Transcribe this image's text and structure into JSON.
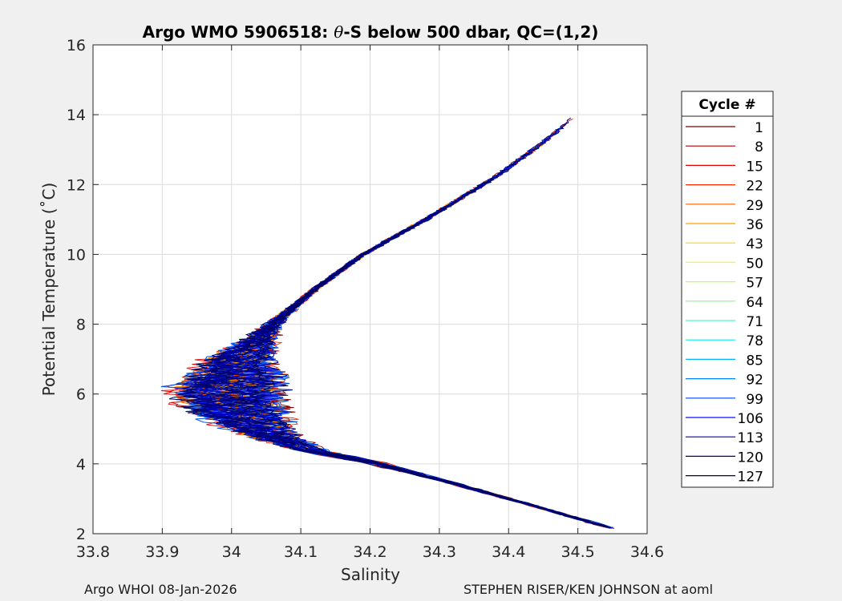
{
  "chart_data": {
    "type": "line",
    "title": {
      "prefix": "Argo WMO 5906518: ",
      "theta": "θ",
      "suffix": "-S below 500 dbar,  QC=(1,2)"
    },
    "xlabel": "Salinity",
    "ylabel": "Potential Temperature (˚C)",
    "xlim": [
      33.8,
      34.6
    ],
    "ylim": [
      2,
      16
    ],
    "xticks": [
      "33.8",
      "33.9",
      "34",
      "34.1",
      "34.2",
      "34.3",
      "34.4",
      "34.5",
      "34.6"
    ],
    "yticks": [
      "2",
      "4",
      "6",
      "8",
      "10",
      "12",
      "14",
      "16"
    ],
    "grid": true,
    "legend": {
      "title": "Cycle #",
      "placement": "right",
      "entries": [
        {
          "label": "1",
          "color": "#800000"
        },
        {
          "label": "8",
          "color": "#b00000"
        },
        {
          "label": "15",
          "color": "#e00000"
        },
        {
          "label": "22",
          "color": "#ff2a00"
        },
        {
          "label": "29",
          "color": "#ff6400"
        },
        {
          "label": "36",
          "color": "#ff9f00"
        },
        {
          "label": "43",
          "color": "#ffd400"
        },
        {
          "label": "50",
          "color": "#f7ff00"
        },
        {
          "label": "57",
          "color": "#bfff3f"
        },
        {
          "label": "64",
          "color": "#7fff7f"
        },
        {
          "label": "71",
          "color": "#3fffbf"
        },
        {
          "label": "78",
          "color": "#00f0ff"
        },
        {
          "label": "85",
          "color": "#00b8ff"
        },
        {
          "label": "92",
          "color": "#0080ff"
        },
        {
          "label": "99",
          "color": "#0048ff"
        },
        {
          "label": "106",
          "color": "#0010ff"
        },
        {
          "label": "113",
          "color": "#0000c8"
        },
        {
          "label": "120",
          "color": "#000090"
        },
        {
          "label": "127",
          "color": "#000060"
        }
      ]
    },
    "profile_envelope": {
      "center": [
        [
          34.55,
          2.15
        ],
        [
          34.4,
          3.0
        ],
        [
          34.3,
          3.55
        ],
        [
          34.2,
          4.05
        ],
        [
          34.12,
          4.35
        ],
        [
          34.06,
          4.75
        ],
        [
          34.0,
          5.5
        ],
        [
          33.99,
          6.2
        ],
        [
          34.01,
          7.0
        ],
        [
          34.06,
          8.0
        ],
        [
          34.12,
          9.0
        ],
        [
          34.19,
          10.0
        ],
        [
          34.28,
          11.0
        ],
        [
          34.38,
          12.2
        ],
        [
          34.45,
          13.2
        ],
        [
          34.51,
          14.2
        ]
      ],
      "lower_branch_shift": [
        34.55,
        33.98
      ],
      "upper_branch_end": [
        34.51,
        14.2
      ]
    }
  },
  "footer": {
    "left": "Argo WHOI 08-Jan-2026",
    "right": "STEPHEN RISER/KEN JOHNSON at aoml"
  }
}
